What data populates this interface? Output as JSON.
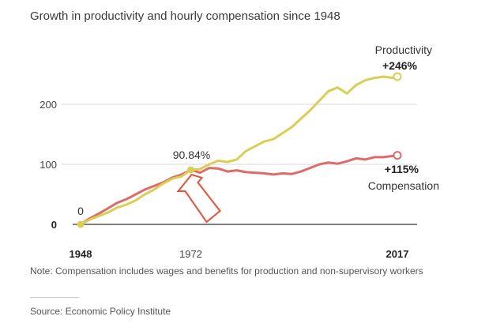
{
  "title": "Growth in productivity and hourly compensation since 1948",
  "note": "Note: Compensation includes wages and benefits for production and non-supervisory workers",
  "source": "Source: Economic Policy Institute",
  "chart_data": {
    "type": "line",
    "title": "Growth in productivity and hourly compensation since 1948",
    "xlabel": "",
    "ylabel": "",
    "xlim": [
      1948,
      2017
    ],
    "ylim": [
      -15,
      265
    ],
    "x_ticks": [
      {
        "value": 1948,
        "label": "1948",
        "bold": true
      },
      {
        "value": 1972,
        "label": "1972",
        "bold": false
      },
      {
        "value": 2017,
        "label": "2017",
        "bold": true
      }
    ],
    "y_ticks": [
      {
        "value": 0,
        "label": "0",
        "bold": true
      },
      {
        "value": 100,
        "label": "100",
        "bold": false
      },
      {
        "value": 200,
        "label": "200",
        "bold": false
      }
    ],
    "grid": true,
    "series": [
      {
        "key": "productivity",
        "name": "Productivity",
        "color": "#d9cf52",
        "x": [
          1948,
          1950,
          1952,
          1954,
          1956,
          1958,
          1960,
          1962,
          1964,
          1966,
          1968,
          1970,
          1972,
          1974,
          1976,
          1978,
          1980,
          1982,
          1984,
          1986,
          1988,
          1990,
          1992,
          1994,
          1996,
          1998,
          2000,
          2002,
          2004,
          2006,
          2008,
          2010,
          2012,
          2014,
          2016,
          2017
        ],
        "values": [
          0,
          8,
          14,
          20,
          28,
          33,
          40,
          50,
          58,
          68,
          76,
          80,
          90.84,
          92,
          100,
          106,
          104,
          108,
          122,
          130,
          138,
          142,
          152,
          162,
          176,
          190,
          206,
          222,
          228,
          218,
          232,
          240,
          244,
          246,
          244,
          246
        ]
      },
      {
        "key": "compensation",
        "name": "Compensation",
        "color": "#e06a6a",
        "x": [
          1948,
          1950,
          1952,
          1954,
          1956,
          1958,
          1960,
          1962,
          1964,
          1966,
          1968,
          1970,
          1972,
          1974,
          1976,
          1978,
          1980,
          1982,
          1984,
          1986,
          1988,
          1990,
          1992,
          1994,
          1996,
          1998,
          2000,
          2002,
          2004,
          2006,
          2008,
          2010,
          2012,
          2014,
          2016,
          2017
        ],
        "values": [
          0,
          10,
          18,
          27,
          36,
          42,
          50,
          58,
          64,
          70,
          78,
          83,
          91,
          86,
          94,
          93,
          88,
          90,
          87,
          86,
          85,
          83,
          85,
          84,
          88,
          94,
          100,
          103,
          101,
          105,
          110,
          108,
          112,
          112,
          114,
          115
        ]
      }
    ],
    "annotations": [
      {
        "text": "0",
        "x": 1948,
        "y": 0,
        "bold": false
      },
      {
        "text": "90.84%",
        "x": 1972,
        "y": 90.84,
        "bold": false
      },
      {
        "text": "Productivity",
        "series": "productivity",
        "bold": false
      },
      {
        "text": "+246%",
        "series": "productivity",
        "bold": true
      },
      {
        "text": "+115%",
        "series": "compensation",
        "bold": true
      },
      {
        "text": "Compensation",
        "series": "compensation",
        "bold": false
      }
    ],
    "highlight_arrow": {
      "points_to_year": 1972,
      "color": "#e8503a"
    }
  }
}
